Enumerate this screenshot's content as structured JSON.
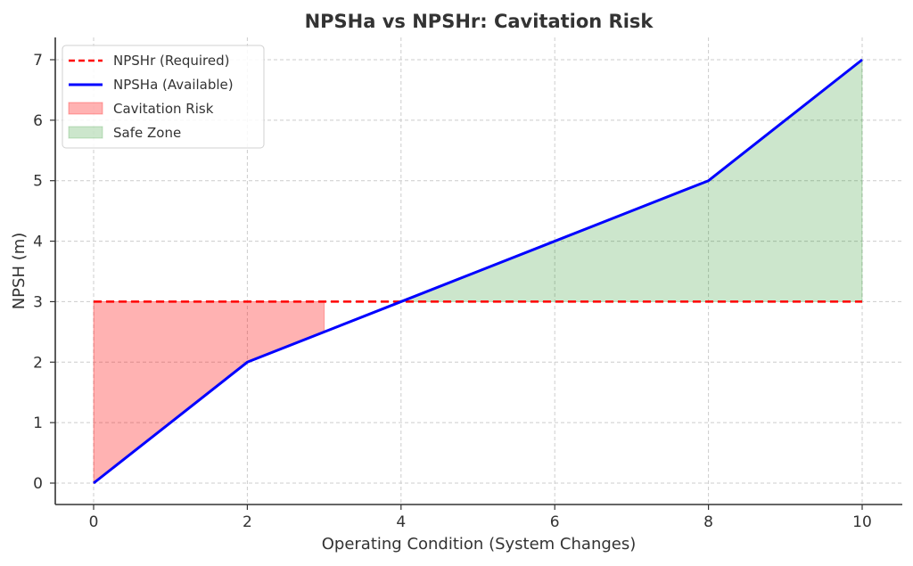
{
  "chart_data": {
    "type": "line",
    "title": "NPSHa vs NPSHr: Cavitation Risk",
    "xlabel": "Operating Condition (System Changes)",
    "ylabel": "NPSH (m)",
    "xlim": [
      -0.5,
      10.5
    ],
    "ylim": [
      -0.35,
      7.35
    ],
    "xticks": [
      0,
      2,
      4,
      6,
      8,
      10
    ],
    "yticks": [
      0,
      1,
      2,
      3,
      4,
      5,
      6,
      7
    ],
    "grid": true,
    "legend_position": "top-left",
    "x": [
      0,
      1,
      2,
      3,
      4,
      5,
      6,
      7,
      8,
      9,
      10
    ],
    "series": [
      {
        "name": "NPSHr (Required)",
        "style": "dashed",
        "color": "#ff0000",
        "values": [
          3,
          3,
          3,
          3,
          3,
          3,
          3,
          3,
          3,
          3,
          3
        ]
      },
      {
        "name": "NPSHa (Available)",
        "style": "solid",
        "color": "#0000ff",
        "values": [
          0,
          1,
          2,
          2.5,
          3,
          3.5,
          4,
          4.5,
          5,
          6,
          7
        ]
      }
    ],
    "fills": [
      {
        "name": "Cavitation Risk",
        "color": "#ff0000",
        "alpha": 0.3,
        "where": "NPSHa < NPSHr"
      },
      {
        "name": "Safe Zone",
        "color": "#008000",
        "alpha": 0.2,
        "where": "NPSHa > NPSHr"
      }
    ]
  }
}
